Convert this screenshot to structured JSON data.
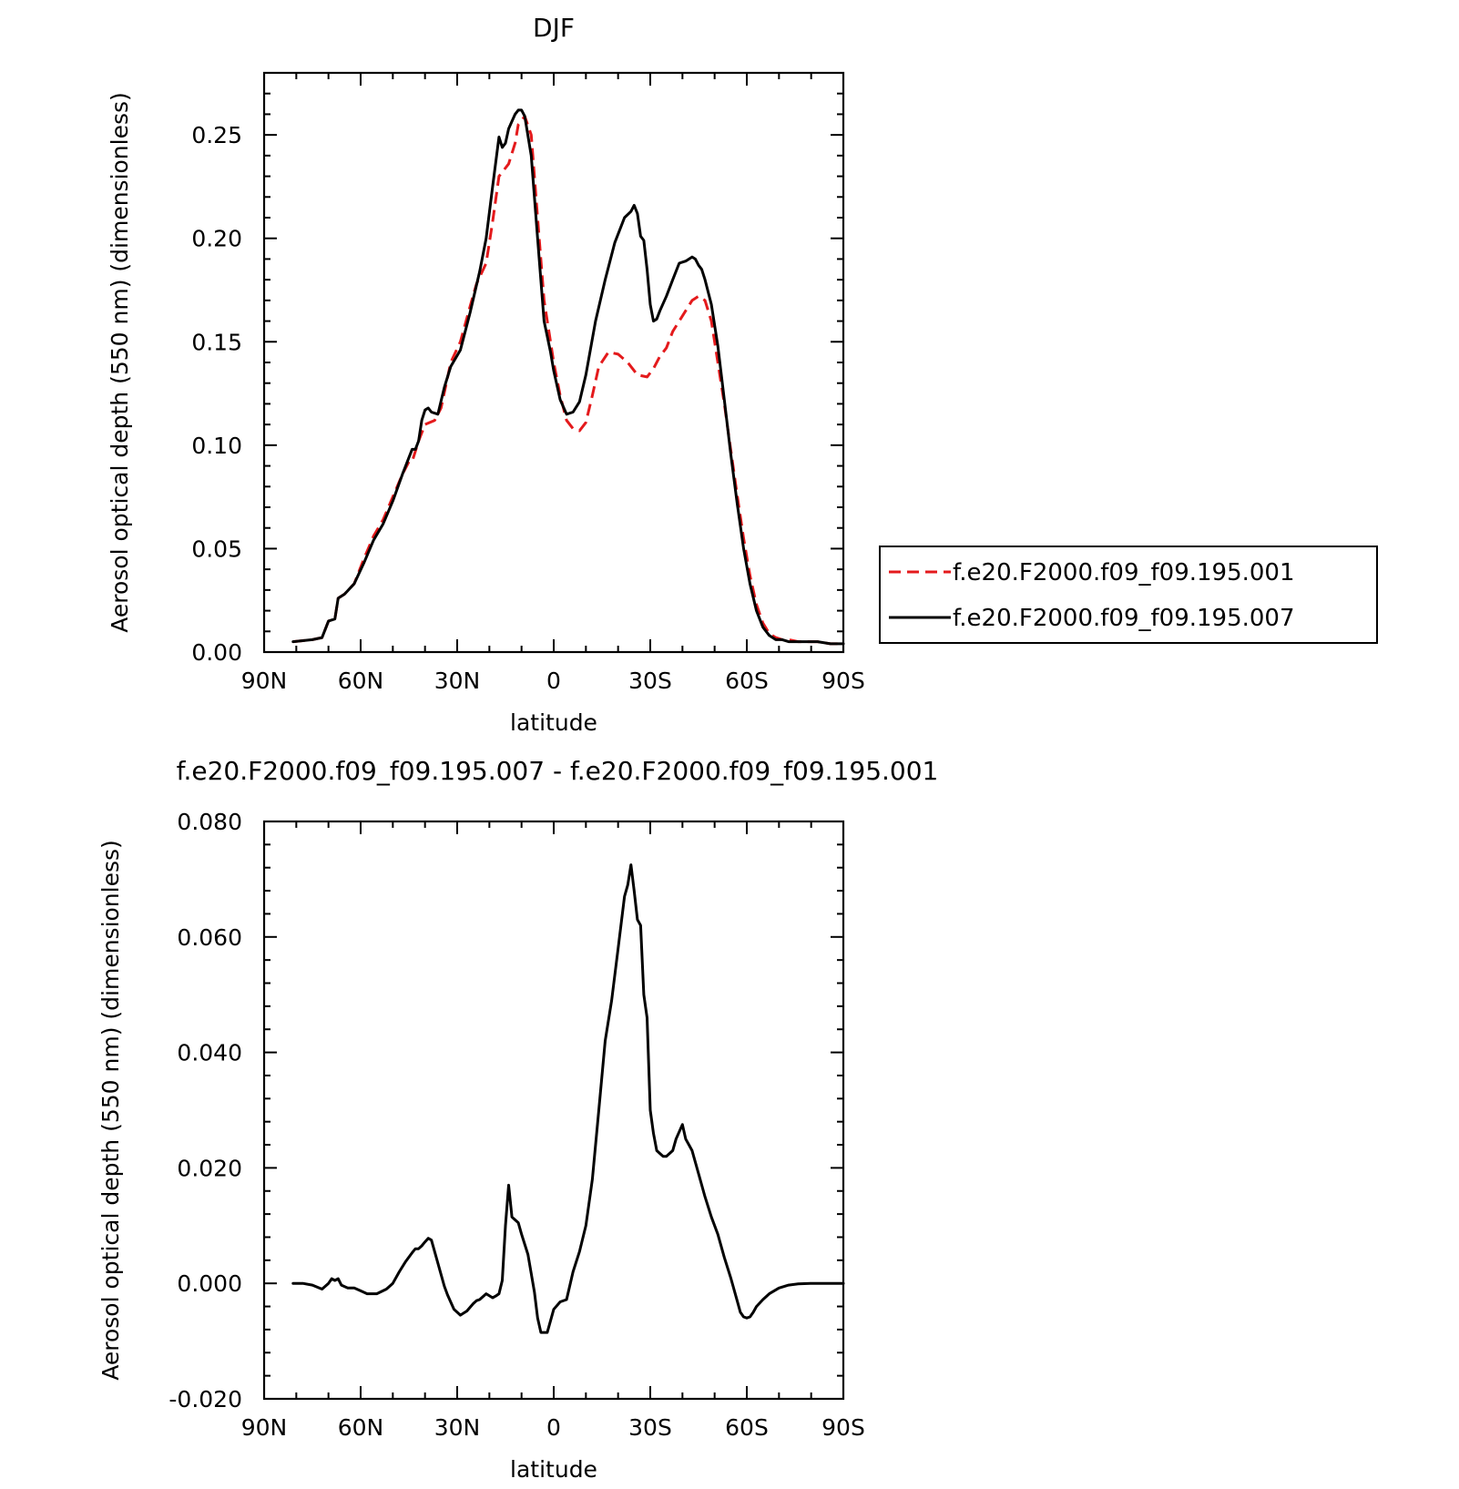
{
  "chart_data": [
    {
      "type": "line",
      "title": "DJF",
      "xlabel": "latitude",
      "ylabel": "Aerosol optical depth (550 nm) (dimensionless)",
      "xlim": [
        90,
        -90
      ],
      "ylim": [
        0,
        0.28
      ],
      "x_tick_values": [
        90,
        60,
        30,
        0,
        -30,
        -60,
        -90
      ],
      "x_tick_labels": [
        "90N",
        "60N",
        "30N",
        "0",
        "30S",
        "60S",
        "90S"
      ],
      "y_tick_values": [
        0,
        0.05,
        0.1,
        0.15,
        0.2,
        0.25
      ],
      "y_tick_labels": [
        "0.00",
        "0.05",
        "0.10",
        "0.15",
        "0.20",
        "0.25"
      ],
      "legend_position": "right",
      "series": [
        {
          "name": "f.e20.F2000.f09_f09.195.001",
          "color": "#e41a1c",
          "dash": "dashed",
          "x": [
            81,
            75,
            72,
            70,
            68,
            67,
            65,
            62,
            59,
            56,
            53,
            50,
            47,
            45,
            44,
            42,
            40,
            37,
            35,
            32,
            29,
            26,
            24,
            21,
            19,
            17,
            16,
            14,
            12,
            11,
            9,
            7,
            5,
            3,
            1,
            0,
            -2,
            -4,
            -6,
            -8,
            -10,
            -12,
            -14,
            -17,
            -20,
            -23,
            -26,
            -29,
            -31,
            -33,
            -35,
            -37,
            -39,
            -41,
            -43,
            -45,
            -47,
            -49,
            -51,
            -53,
            -55,
            -57,
            -59,
            -61,
            -63,
            -65,
            -67,
            -69,
            -71,
            -73,
            -76,
            -79,
            -82,
            -86,
            -90
          ],
          "y": [
            0.005,
            0.006,
            0.007,
            0.015,
            0.016,
            0.026,
            0.028,
            0.033,
            0.045,
            0.056,
            0.064,
            0.075,
            0.086,
            0.092,
            0.092,
            0.102,
            0.11,
            0.112,
            0.118,
            0.14,
            0.15,
            0.167,
            0.178,
            0.188,
            0.208,
            0.23,
            0.232,
            0.236,
            0.246,
            0.255,
            0.259,
            0.25,
            0.21,
            0.17,
            0.15,
            0.14,
            0.124,
            0.112,
            0.108,
            0.107,
            0.111,
            0.124,
            0.138,
            0.145,
            0.144,
            0.14,
            0.134,
            0.133,
            0.137,
            0.143,
            0.147,
            0.155,
            0.16,
            0.165,
            0.17,
            0.172,
            0.17,
            0.16,
            0.14,
            0.12,
            0.098,
            0.076,
            0.055,
            0.037,
            0.023,
            0.014,
            0.009,
            0.007,
            0.006,
            0.006,
            0.005,
            0.005,
            0.005,
            0.004,
            0.004
          ]
        },
        {
          "name": "f.e20.F2000.f09_f09.195.007",
          "color": "#000000",
          "dash": "solid",
          "x": [
            81,
            75,
            72,
            70,
            68,
            67,
            65,
            62,
            59,
            56,
            53,
            50,
            47,
            44,
            43,
            42,
            41,
            40,
            39,
            38,
            36,
            34,
            32,
            29,
            26,
            23,
            21,
            19,
            17,
            16,
            15,
            14,
            12,
            11,
            10,
            9,
            7,
            5,
            3,
            1,
            0,
            -2,
            -4,
            -6,
            -8,
            -10,
            -13,
            -16,
            -19,
            -22,
            -24,
            -25,
            -26,
            -27,
            -28,
            -29,
            -30,
            -31,
            -32,
            -33,
            -35,
            -37,
            -39,
            -41,
            -43,
            -44,
            -45,
            -46,
            -47,
            -49,
            -51,
            -53,
            -55,
            -57,
            -59,
            -61,
            -63,
            -65,
            -67,
            -69,
            -71,
            -73,
            -76,
            -79,
            -82,
            -86,
            -90
          ],
          "y": [
            0.005,
            0.006,
            0.007,
            0.015,
            0.016,
            0.026,
            0.028,
            0.033,
            0.043,
            0.054,
            0.062,
            0.073,
            0.086,
            0.098,
            0.098,
            0.102,
            0.112,
            0.117,
            0.118,
            0.116,
            0.115,
            0.128,
            0.138,
            0.146,
            0.164,
            0.184,
            0.2,
            0.225,
            0.249,
            0.244,
            0.246,
            0.253,
            0.26,
            0.262,
            0.262,
            0.259,
            0.24,
            0.2,
            0.16,
            0.145,
            0.136,
            0.122,
            0.115,
            0.116,
            0.121,
            0.134,
            0.16,
            0.18,
            0.198,
            0.21,
            0.213,
            0.216,
            0.212,
            0.201,
            0.199,
            0.185,
            0.168,
            0.16,
            0.161,
            0.165,
            0.172,
            0.18,
            0.188,
            0.189,
            0.191,
            0.19,
            0.187,
            0.185,
            0.18,
            0.168,
            0.148,
            0.122,
            0.096,
            0.072,
            0.05,
            0.033,
            0.02,
            0.012,
            0.008,
            0.006,
            0.006,
            0.005,
            0.005,
            0.005,
            0.005,
            0.004,
            0.004
          ]
        }
      ]
    },
    {
      "type": "line",
      "title": "f.e20.F2000.f09_f09.195.007 - f.e20.F2000.f09_f09.195.001",
      "xlabel": "latitude",
      "ylabel": "Aerosol optical depth (550 nm) (dimensionless)",
      "xlim": [
        90,
        -90
      ],
      "ylim": [
        -0.02,
        0.08
      ],
      "x_tick_values": [
        90,
        60,
        30,
        0,
        -30,
        -60,
        -90
      ],
      "x_tick_labels": [
        "90N",
        "60N",
        "30N",
        "0",
        "30S",
        "60S",
        "90S"
      ],
      "y_tick_values": [
        -0.02,
        0,
        0.02,
        0.04,
        0.06,
        0.08
      ],
      "y_tick_labels": [
        "-0.020",
        "0.000",
        "0.020",
        "0.040",
        "0.060",
        "0.080"
      ],
      "series": [
        {
          "color": "#000000",
          "dash": "solid",
          "x": [
            81,
            78,
            75,
            72,
            70,
            69,
            68,
            67,
            66,
            64,
            62,
            60,
            58,
            55,
            52,
            50,
            48,
            46,
            44,
            43,
            42,
            41,
            40,
            39,
            38,
            36,
            34,
            33,
            31,
            29,
            27,
            25,
            24,
            23,
            21,
            19,
            18,
            17,
            16,
            15,
            14,
            13,
            12,
            11,
            10,
            8,
            6,
            5,
            4,
            2,
            0,
            -2,
            -4,
            -6,
            -8,
            -10,
            -12,
            -14,
            -16,
            -18,
            -20,
            -22,
            -23,
            -24,
            -25,
            -26,
            -27,
            -28,
            -29,
            -30,
            -31,
            -32,
            -33,
            -34,
            -35,
            -37,
            -38,
            -40,
            -41,
            -42,
            -43,
            -45,
            -47,
            -49,
            -51,
            -53,
            -55,
            -57,
            -58,
            -59,
            -60,
            -61,
            -62,
            -63,
            -65,
            -67,
            -70,
            -73,
            -76,
            -80,
            -85,
            -90
          ],
          "y": [
            0.0,
            0.0,
            -0.0003,
            -0.001,
            0.0,
            0.0008,
            0.0005,
            0.0008,
            -0.0003,
            -0.0008,
            -0.0008,
            -0.0013,
            -0.0018,
            -0.0018,
            -0.001,
            0.0,
            0.002,
            0.0038,
            0.0053,
            0.006,
            0.006,
            0.0065,
            0.0072,
            0.0078,
            0.0075,
            0.0035,
            -0.0005,
            -0.002,
            -0.0045,
            -0.0055,
            -0.0048,
            -0.0035,
            -0.003,
            -0.0028,
            -0.0018,
            -0.0025,
            -0.0022,
            -0.0018,
            0.0005,
            0.01,
            0.017,
            0.0115,
            0.011,
            0.0105,
            0.0085,
            0.005,
            -0.0015,
            -0.006,
            -0.0085,
            -0.0085,
            -0.0045,
            -0.0032,
            -0.0028,
            0.002,
            0.0055,
            0.01,
            0.018,
            0.03,
            0.042,
            0.049,
            0.058,
            0.067,
            0.069,
            0.0725,
            0.068,
            0.063,
            0.062,
            0.05,
            0.046,
            0.03,
            0.026,
            0.023,
            0.0225,
            0.022,
            0.022,
            0.023,
            0.025,
            0.0275,
            0.025,
            0.024,
            0.023,
            0.019,
            0.015,
            0.0115,
            0.0085,
            0.0045,
            0.001,
            -0.003,
            -0.005,
            -0.0058,
            -0.006,
            -0.0058,
            -0.005,
            -0.004,
            -0.0028,
            -0.0018,
            -0.0008,
            -0.0003,
            -0.0001,
            0.0,
            0.0,
            0.0
          ]
        }
      ]
    }
  ]
}
